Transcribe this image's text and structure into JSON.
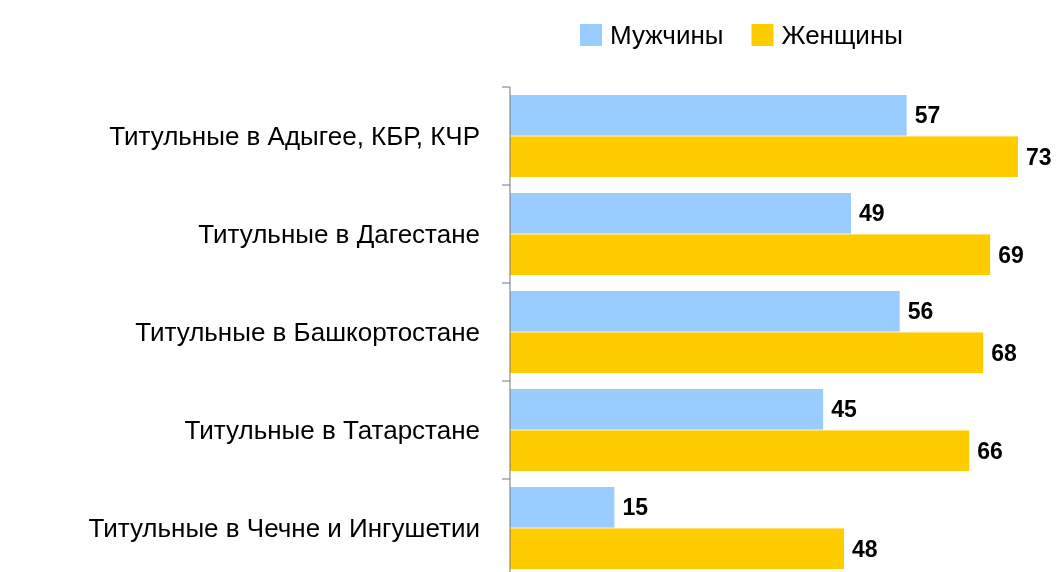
{
  "chart_data": {
    "type": "bar",
    "orientation": "horizontal",
    "categories": [
      "Титульные в Адыгее, КБР, КЧР",
      "Титульные в Дагестане",
      "Титульные в Башкортостане",
      "Титульные в Татарстане",
      "Титульные в Чечне и Ингушетии"
    ],
    "series": [
      {
        "name": "Мужчины",
        "color": "#99ccff",
        "values": [
          57,
          49,
          56,
          45,
          15
        ]
      },
      {
        "name": "Женщины",
        "color": "#ffcc00",
        "values": [
          73,
          69,
          68,
          66,
          48
        ]
      }
    ],
    "data_labels": true,
    "legend": "top"
  }
}
